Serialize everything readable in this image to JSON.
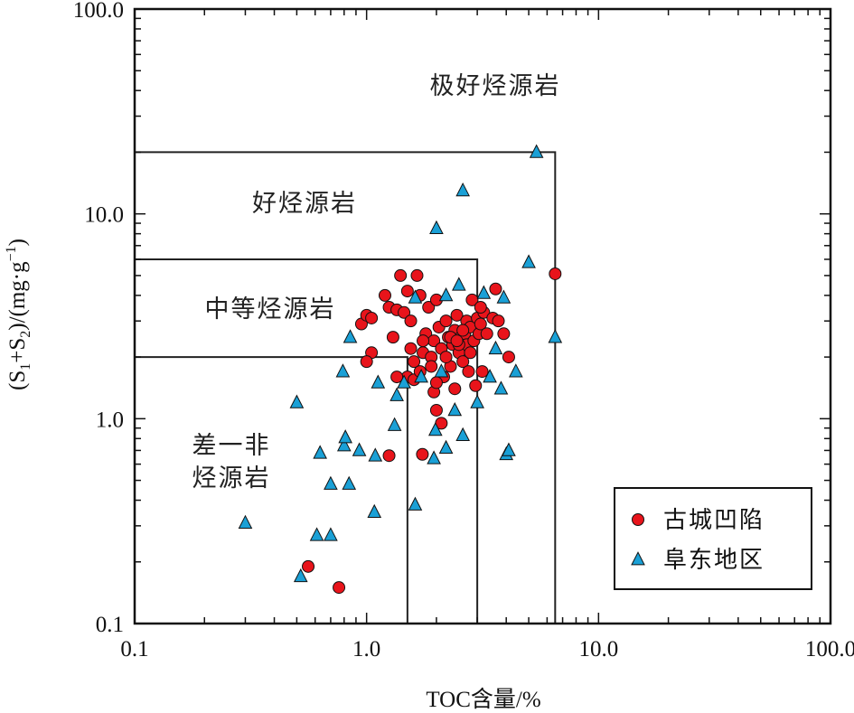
{
  "chart_data": {
    "type": "scatter",
    "x_scale": "log",
    "y_scale": "log",
    "xlim": [
      0.1,
      100
    ],
    "ylim": [
      0.1,
      100
    ],
    "xlabel": "TOC含量/%",
    "ylabel_parts": [
      "(S",
      "1",
      "+S",
      "2",
      ")/(mg·g",
      "−1",
      ")"
    ],
    "x_ticks": [
      {
        "value": 0.1,
        "label": "0.1"
      },
      {
        "value": 1,
        "label": "1.0"
      },
      {
        "value": 10,
        "label": "10.0"
      },
      {
        "value": 100,
        "label": "100.0"
      }
    ],
    "y_ticks": [
      {
        "value": 0.1,
        "label": "0.1"
      },
      {
        "value": 1,
        "label": "1.0"
      },
      {
        "value": 10,
        "label": "10.0"
      },
      {
        "value": 100,
        "label": "100.0"
      }
    ],
    "zones": [
      {
        "label": "极好烃源岩",
        "x_max": 100,
        "y_max": 100
      },
      {
        "label": "好烃源岩",
        "x_max": 6.5,
        "y_max": 20
      },
      {
        "label": "中等烃源岩",
        "x_max": 3.0,
        "y_max": 6
      },
      {
        "label_lines": [
          "差一非",
          "烃源岩"
        ],
        "x_max": 1.5,
        "y_max": 2
      }
    ],
    "legend_position": "bottom-right",
    "series": [
      {
        "name": "古城凹陷",
        "marker": "circle",
        "color": "#e8141b",
        "points": [
          [
            0.56,
            0.19
          ],
          [
            0.76,
            0.15
          ],
          [
            1.25,
            0.66
          ],
          [
            1.74,
            0.67
          ],
          [
            0.95,
            2.9
          ],
          [
            1.0,
            3.2
          ],
          [
            1.05,
            3.1
          ],
          [
            1.05,
            2.1
          ],
          [
            1.0,
            1.9
          ],
          [
            1.2,
            4.0
          ],
          [
            1.25,
            3.5
          ],
          [
            1.3,
            2.5
          ],
          [
            1.35,
            3.4
          ],
          [
            1.4,
            5.0
          ],
          [
            1.45,
            3.3
          ],
          [
            1.5,
            4.2
          ],
          [
            1.55,
            3.0
          ],
          [
            1.55,
            2.2
          ],
          [
            1.5,
            1.6
          ],
          [
            1.6,
            1.9
          ],
          [
            1.65,
            5.0
          ],
          [
            1.7,
            4.0
          ],
          [
            1.6,
            1.55
          ],
          [
            1.7,
            1.7
          ],
          [
            1.75,
            2.1
          ],
          [
            1.8,
            2.6
          ],
          [
            1.85,
            3.5
          ],
          [
            1.9,
            2.0
          ],
          [
            1.95,
            2.4
          ],
          [
            1.95,
            1.35
          ],
          [
            2.0,
            3.8
          ],
          [
            2.0,
            1.1
          ],
          [
            2.05,
            2.8
          ],
          [
            2.1,
            2.2
          ],
          [
            2.1,
            0.95
          ],
          [
            2.15,
            1.6
          ],
          [
            2.2,
            3.0
          ],
          [
            2.25,
            2.5
          ],
          [
            2.3,
            1.8
          ],
          [
            2.35,
            2.3
          ],
          [
            2.4,
            2.7
          ],
          [
            2.4,
            1.4
          ],
          [
            2.45,
            3.2
          ],
          [
            2.5,
            2.1
          ],
          [
            2.55,
            2.5
          ],
          [
            2.6,
            1.9
          ],
          [
            2.65,
            2.6
          ],
          [
            2.7,
            3.0
          ],
          [
            2.7,
            2.3
          ],
          [
            2.75,
            1.7
          ],
          [
            2.8,
            2.8
          ],
          [
            2.85,
            3.8
          ],
          [
            2.9,
            2.4
          ],
          [
            2.95,
            1.45
          ],
          [
            3.0,
            3.1
          ],
          [
            3.05,
            2.6
          ],
          [
            3.1,
            2.9
          ],
          [
            3.15,
            1.7
          ],
          [
            3.2,
            3.3
          ],
          [
            3.3,
            2.6
          ],
          [
            3.5,
            3.1
          ],
          [
            3.6,
            4.3
          ],
          [
            3.7,
            3.0
          ],
          [
            3.9,
            2.6
          ],
          [
            4.1,
            2.0
          ],
          [
            6.5,
            5.1
          ],
          [
            2.3,
            2.5
          ],
          [
            2.5,
            2.3
          ],
          [
            2.6,
            2.7
          ],
          [
            2.2,
            2.0
          ],
          [
            1.9,
            1.8
          ],
          [
            1.75,
            2.4
          ],
          [
            2.0,
            1.5
          ],
          [
            2.8,
            2.1
          ],
          [
            3.1,
            3.5
          ],
          [
            1.35,
            1.6
          ],
          [
            2.45,
            2.4
          ]
        ]
      },
      {
        "name": "阜东地区",
        "marker": "triangle",
        "color": "#1aa0d6",
        "points": [
          [
            0.3,
            0.31
          ],
          [
            0.5,
            1.2
          ],
          [
            0.52,
            0.17
          ],
          [
            0.61,
            0.27
          ],
          [
            0.63,
            0.68
          ],
          [
            0.7,
            0.48
          ],
          [
            0.7,
            0.27
          ],
          [
            0.79,
            1.7
          ],
          [
            0.8,
            0.74
          ],
          [
            0.81,
            0.81
          ],
          [
            0.84,
            0.48
          ],
          [
            0.85,
            2.5
          ],
          [
            0.93,
            0.7
          ],
          [
            1.08,
            0.35
          ],
          [
            1.09,
            0.66
          ],
          [
            1.12,
            1.5
          ],
          [
            1.32,
            0.93
          ],
          [
            1.35,
            1.3
          ],
          [
            1.45,
            1.5
          ],
          [
            1.62,
            0.38
          ],
          [
            1.62,
            3.9
          ],
          [
            1.72,
            1.6
          ],
          [
            1.95,
            0.64
          ],
          [
            1.98,
            0.88
          ],
          [
            2.0,
            8.5
          ],
          [
            2.2,
            0.72
          ],
          [
            2.2,
            4.0
          ],
          [
            2.4,
            1.1
          ],
          [
            2.5,
            4.5
          ],
          [
            2.6,
            0.83
          ],
          [
            2.6,
            13.0
          ],
          [
            3.0,
            1.2
          ],
          [
            3.2,
            4.1
          ],
          [
            3.4,
            1.6
          ],
          [
            3.6,
            2.2
          ],
          [
            3.9,
            3.9
          ],
          [
            4.0,
            0.67
          ],
          [
            4.1,
            0.7
          ],
          [
            4.4,
            1.7
          ],
          [
            5.0,
            5.8
          ],
          [
            5.4,
            20.0
          ],
          [
            6.5,
            2.5
          ],
          [
            3.8,
            1.4
          ],
          [
            2.1,
            1.7
          ]
        ]
      }
    ]
  }
}
